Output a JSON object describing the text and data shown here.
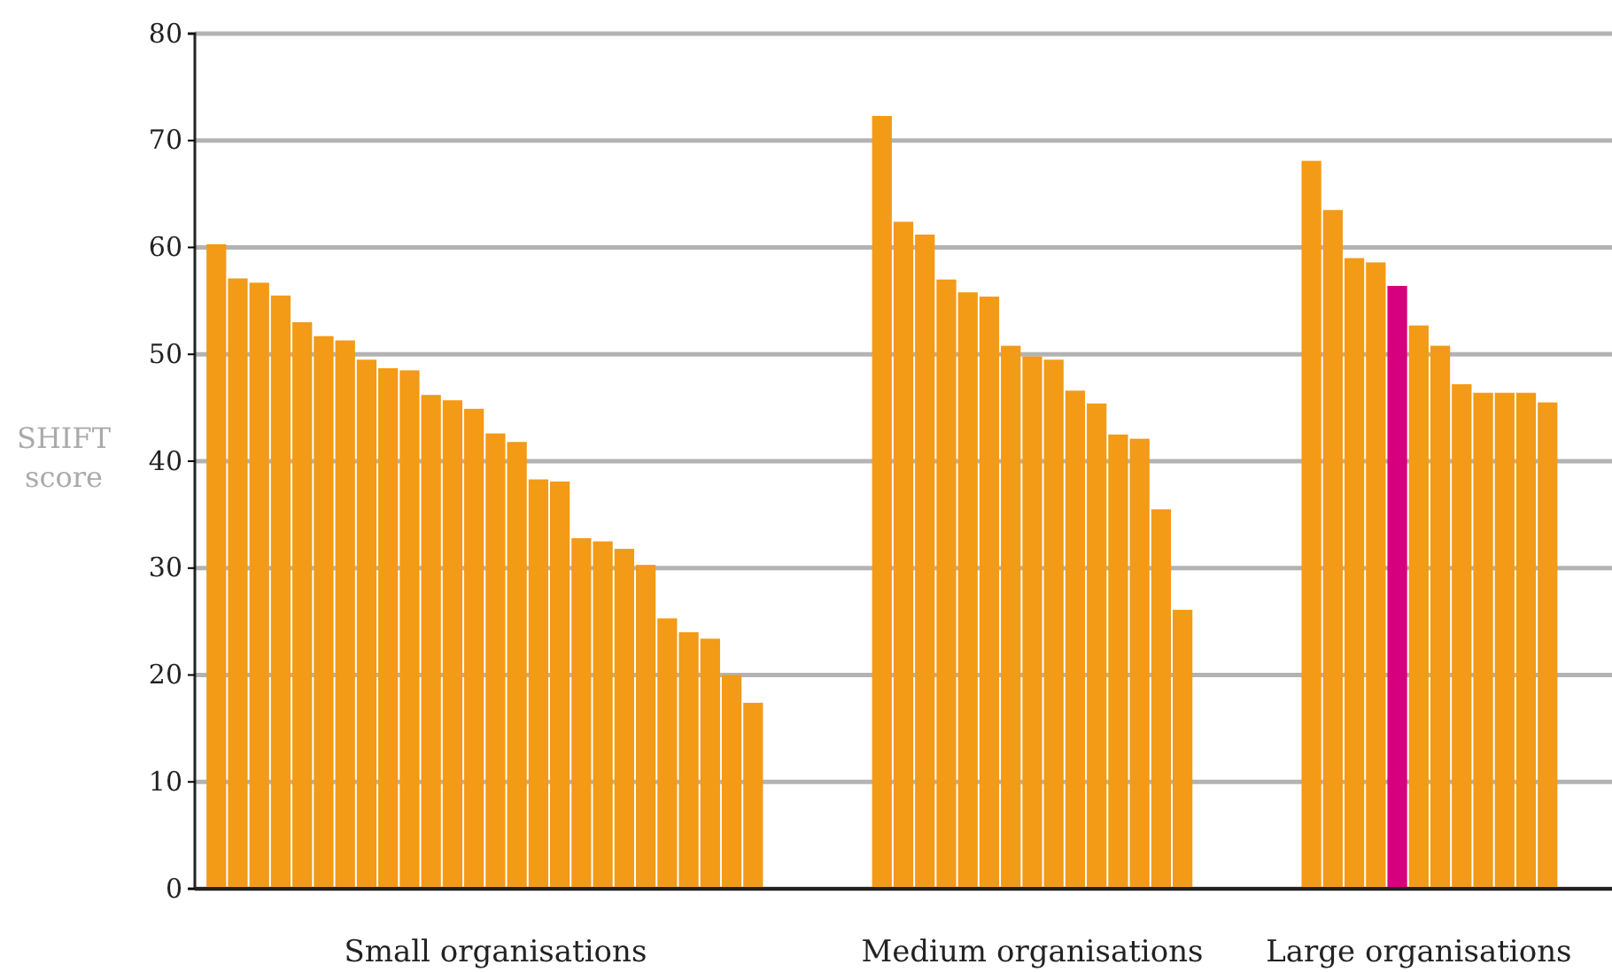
{
  "chart_data": {
    "type": "bar",
    "ylabel": "SHIFT score",
    "categories": [
      null,
      null,
      null,
      null,
      null,
      null,
      null,
      null,
      null,
      null,
      null,
      null,
      null,
      "Small organisations",
      null,
      null,
      null,
      null,
      null,
      null,
      null,
      null,
      null,
      null,
      null,
      null,
      null,
      null,
      null,
      null,
      null,
      null,
      null,
      null,
      null,
      null,
      null,
      null,
      "Medium organisations",
      null,
      null,
      null,
      null,
      null,
      null,
      null,
      null,
      null,
      null,
      null,
      null,
      null,
      null,
      null,
      null,
      null,
      "Large organisations",
      null,
      null,
      null,
      null,
      null,
      null
    ],
    "values": [
      60.3,
      57.1,
      56.7,
      55.5,
      53,
      51.7,
      51.3,
      49.5,
      48.7,
      48.5,
      46.2,
      45.7,
      44.9,
      42.6,
      41.8,
      38.3,
      38.1,
      32.8,
      32.5,
      31.8,
      30.3,
      25.3,
      24,
      23.4,
      20,
      17.4,
      null,
      null,
      null,
      null,
      null,
      72.3,
      62.4,
      61.2,
      57,
      55.8,
      55.4,
      50.8,
      49.8,
      49.5,
      46.6,
      45.4,
      42.5,
      42.1,
      35.5,
      26.1,
      null,
      null,
      null,
      null,
      null,
      68.1,
      63.5,
      59,
      58.6,
      56.4,
      52.7,
      50.8,
      47.2,
      46.4,
      46.4,
      46.4,
      45.5
    ],
    "colors": [
      "#f39a16",
      "#f39a16",
      "#f39a16",
      "#f39a16",
      "#f39a16",
      "#f39a16",
      "#f39a16",
      "#f39a16",
      "#f39a16",
      "#f39a16",
      "#f39a16",
      "#f39a16",
      "#f39a16",
      "#f39a16",
      "#f39a16",
      "#f39a16",
      "#f39a16",
      "#f39a16",
      "#f39a16",
      "#f39a16",
      "#f39a16",
      "#f39a16",
      "#f39a16",
      "#f39a16",
      "#f39a16",
      "#f39a16",
      null,
      null,
      null,
      null,
      null,
      "#f39a16",
      "#f39a16",
      "#f39a16",
      "#f39a16",
      "#f39a16",
      "#f39a16",
      "#f39a16",
      "#f39a16",
      "#f39a16",
      "#f39a16",
      "#f39a16",
      "#f39a16",
      "#f39a16",
      "#f39a16",
      "#f39a16",
      null,
      null,
      null,
      null,
      null,
      "#f39a16",
      "#f39a16",
      "#f39a16",
      "#f39a16",
      "#d6007e",
      "#f39a16",
      "#f39a16",
      "#f39a16",
      "#f39a16",
      "#f39a16",
      "#f39a16",
      "#f39a16"
    ],
    "ylim": [
      0,
      80
    ],
    "yticks": [
      0,
      10,
      20,
      30,
      40,
      50,
      60,
      70,
      80
    ],
    "grid": "y"
  }
}
